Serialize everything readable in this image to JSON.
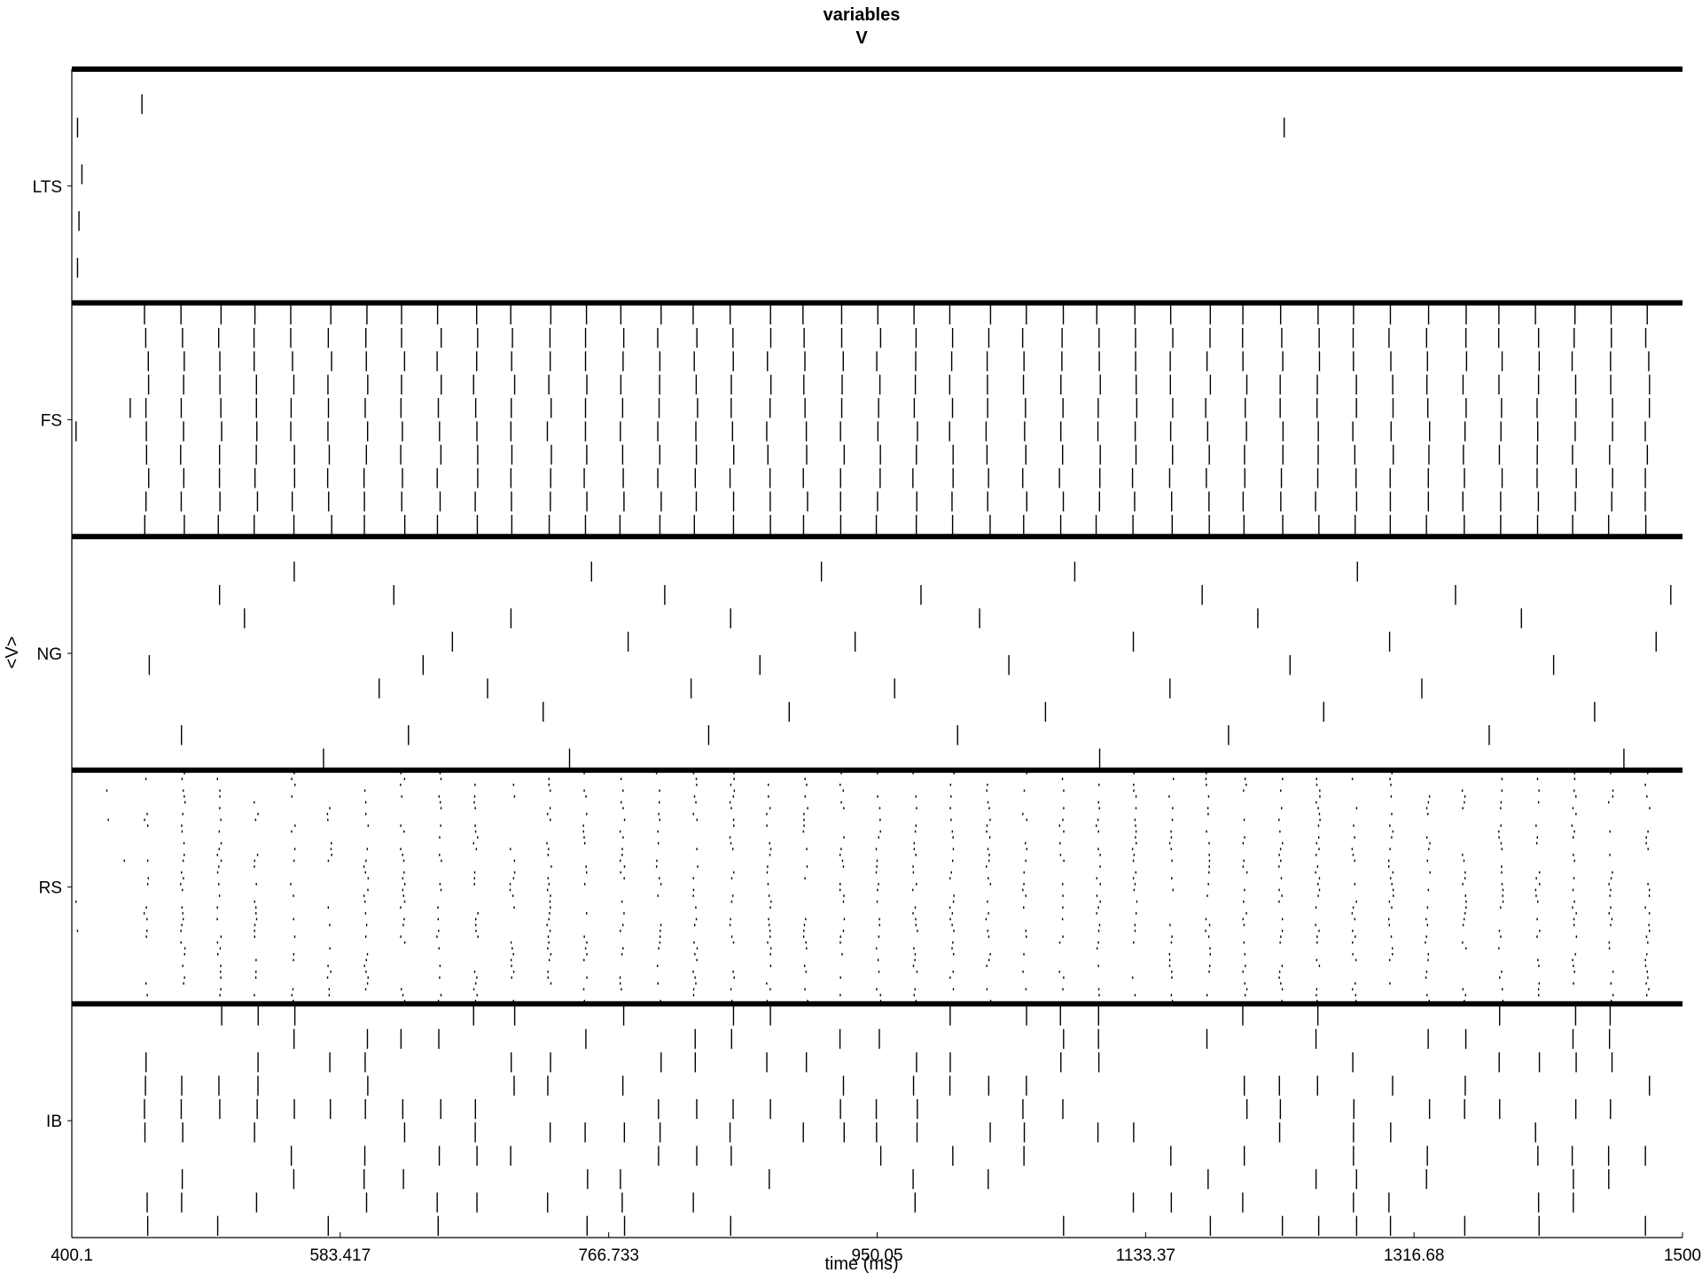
{
  "chart_data": {
    "type": "raster",
    "title": "variables",
    "subtitle": "V",
    "xlabel": "time (ms)",
    "ylabel": "<V>",
    "xlim": [
      400.1,
      1500
    ],
    "xticks": [
      "400.1",
      "583.417",
      "766.733",
      "950.05",
      "1133.37",
      "1316.68",
      "1500"
    ],
    "xtick_values": [
      400.1,
      583.417,
      766.733,
      950.05,
      1133.37,
      1316.68,
      1500
    ],
    "colors": {
      "spike": "#000000",
      "divider": "#000000",
      "background": "#ffffff"
    },
    "populations": [
      {
        "name": "LTS",
        "size": 10,
        "spikes": [
          [
            404,
            2
          ],
          [
            407,
            4
          ],
          [
            405,
            6
          ],
          [
            404,
            8
          ],
          [
            448,
            1
          ],
          [
            1228,
            2
          ]
        ]
      },
      {
        "name": "FS",
        "size": 10,
        "spikes": [
          [
            403,
            5
          ],
          [
            440,
            4
          ]
        ],
        "volley_times": [
          451,
          476,
          501,
          526,
          551,
          576,
          601,
          626,
          651,
          676,
          701,
          726,
          751,
          776,
          801,
          826,
          851,
          876,
          901,
          926,
          951,
          976,
          1001,
          1026,
          1051,
          1076,
          1101,
          1126,
          1151,
          1176,
          1201,
          1226,
          1251,
          1276,
          1301,
          1326,
          1351,
          1376,
          1401,
          1426,
          1451,
          1476
        ],
        "volley_fraction": 1.0
      },
      {
        "name": "NG",
        "size": 10,
        "spikes": [
          [
            453,
            5
          ],
          [
            475,
            8
          ],
          [
            501,
            2
          ],
          [
            518,
            3
          ],
          [
            552,
            1
          ],
          [
            572,
            9
          ],
          [
            620,
            2
          ],
          [
            640,
            5
          ],
          [
            610,
            6
          ],
          [
            630,
            8
          ],
          [
            660,
            4
          ],
          [
            684,
            6
          ],
          [
            700,
            3
          ],
          [
            722,
            7
          ],
          [
            740,
            9
          ],
          [
            755,
            1
          ],
          [
            780,
            4
          ],
          [
            805,
            2
          ],
          [
            823,
            6
          ],
          [
            835,
            8
          ],
          [
            850,
            3
          ],
          [
            870,
            5
          ],
          [
            890,
            7
          ],
          [
            912,
            1
          ],
          [
            935,
            4
          ],
          [
            962,
            6
          ],
          [
            980,
            2
          ],
          [
            1005,
            8
          ],
          [
            1020,
            3
          ],
          [
            1040,
            5
          ],
          [
            1065,
            7
          ],
          [
            1085,
            1
          ],
          [
            1102,
            9
          ],
          [
            1125,
            4
          ],
          [
            1150,
            6
          ],
          [
            1172,
            2
          ],
          [
            1190,
            8
          ],
          [
            1210,
            3
          ],
          [
            1232,
            5
          ],
          [
            1255,
            7
          ],
          [
            1278,
            1
          ],
          [
            1300,
            4
          ],
          [
            1322,
            6
          ],
          [
            1345,
            2
          ],
          [
            1368,
            8
          ],
          [
            1390,
            3
          ],
          [
            1412,
            5
          ],
          [
            1440,
            7
          ],
          [
            1460,
            9
          ],
          [
            1482,
            4
          ],
          [
            1492,
            2
          ]
        ]
      },
      {
        "name": "RS",
        "size": 40,
        "spikes": [
          [
            424,
            3
          ],
          [
            425,
            8
          ],
          [
            436,
            15
          ],
          [
            403,
            22
          ],
          [
            404,
            27
          ]
        ],
        "volley_times": [
          451,
          476,
          501,
          526,
          551,
          576,
          601,
          626,
          651,
          676,
          701,
          726,
          751,
          776,
          801,
          826,
          851,
          876,
          901,
          926,
          951,
          976,
          1001,
          1026,
          1051,
          1076,
          1101,
          1126,
          1151,
          1176,
          1201,
          1226,
          1251,
          1276,
          1301,
          1326,
          1351,
          1376,
          1401,
          1426,
          1451,
          1476
        ],
        "volley_fraction": 0.55
      },
      {
        "name": "IB",
        "size": 10,
        "spikes": [],
        "volley_times": [
          451,
          476,
          501,
          526,
          551,
          576,
          601,
          626,
          651,
          676,
          701,
          726,
          751,
          776,
          801,
          826,
          851,
          876,
          901,
          926,
          951,
          976,
          1001,
          1026,
          1051,
          1076,
          1101,
          1126,
          1151,
          1176,
          1201,
          1226,
          1251,
          1276,
          1301,
          1326,
          1351,
          1376,
          1401,
          1426,
          1451,
          1476
        ],
        "volley_fraction": 0.5
      }
    ]
  }
}
